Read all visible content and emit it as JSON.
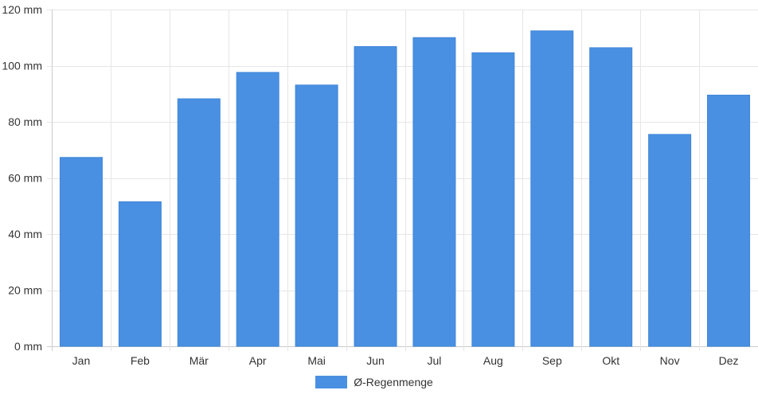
{
  "chart_data": {
    "type": "bar",
    "categories": [
      "Jan",
      "Feb",
      "Mär",
      "Apr",
      "Mai",
      "Jun",
      "Jul",
      "Aug",
      "Sep",
      "Okt",
      "Nov",
      "Dez"
    ],
    "series": [
      {
        "name": "Ø-Regenmenge",
        "values": [
          67.3,
          51.5,
          88.2,
          97.6,
          93.1,
          106.8,
          110.0,
          104.6,
          112.4,
          106.4,
          75.5,
          89.5
        ],
        "color": "#4a90e2"
      }
    ],
    "y_unit": "mm",
    "ylim": [
      0,
      120
    ],
    "yticks": [
      0,
      20,
      40,
      60,
      80,
      100,
      120
    ],
    "grid": true,
    "legend_position": "bottom-center"
  }
}
